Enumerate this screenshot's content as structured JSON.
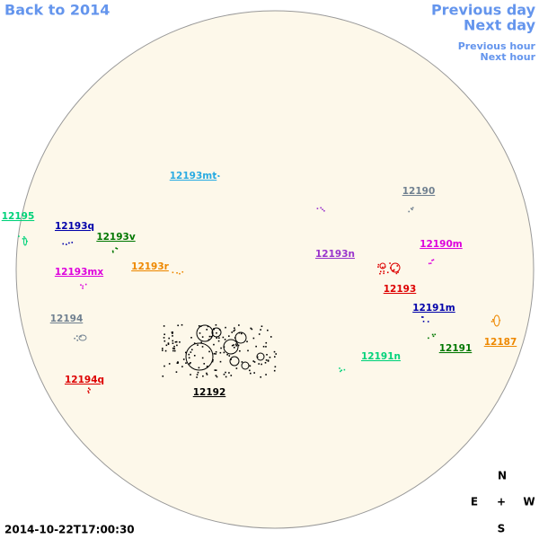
{
  "nav": {
    "back": "Back to 2014",
    "previous_day": "Previous day",
    "next_day": "Next day",
    "previous_hour": "Previous hour",
    "next_hour": "Next hour"
  },
  "regions": [
    {
      "label": "12193mt",
      "color": "#29abe2"
    },
    {
      "label": "12190",
      "color": "#708090"
    },
    {
      "label": "12195",
      "color": "#00d27a"
    },
    {
      "label": "12193q",
      "color": "#0000aa"
    },
    {
      "label": "12193v",
      "color": "#007700"
    },
    {
      "label": "12190m",
      "color": "#dd00dd"
    },
    {
      "label": "12193n",
      "color": "#9933cc"
    },
    {
      "label": "12193r",
      "color": "#ee8800"
    },
    {
      "label": "12193mx",
      "color": "#dd00dd"
    },
    {
      "label": "12193",
      "color": "#dd0000"
    },
    {
      "label": "12191m",
      "color": "#0000aa"
    },
    {
      "label": "12194",
      "color": "#708090"
    },
    {
      "label": "12187",
      "color": "#ee8800"
    },
    {
      "label": "12191",
      "color": "#007700"
    },
    {
      "label": "12191n",
      "color": "#00d27a"
    },
    {
      "label": "12194q",
      "color": "#dd0000"
    },
    {
      "label": "12192",
      "color": "#000000"
    }
  ],
  "compass": {
    "north": "N",
    "east": "E",
    "center": "+",
    "west": "W",
    "south": "S"
  },
  "timestamp": "2014-10-22T17:00:30"
}
